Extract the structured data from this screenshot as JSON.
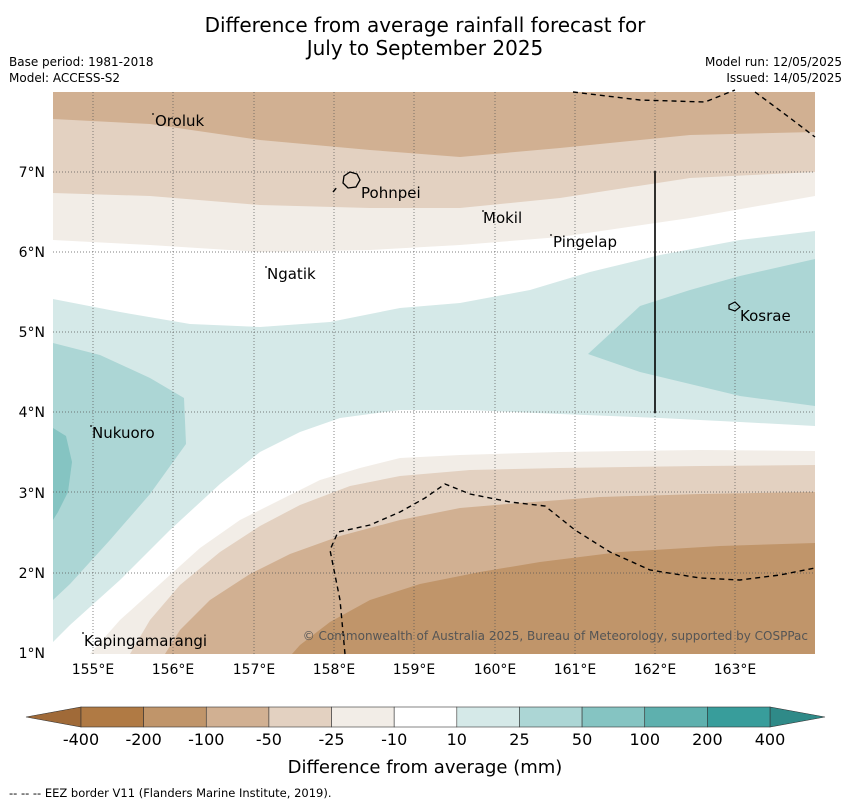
{
  "header": {
    "title_line1": "Difference from average rainfall forecast for",
    "title_line2": "July to September 2025",
    "base_period": "Base period: 1981-2018",
    "model": "Model: ACCESS-S2",
    "model_run": "Model run: 12/05/2025",
    "issued": "Issued: 14/05/2025"
  },
  "map": {
    "lat_ticks": [
      "7°N",
      "6°N",
      "5°N",
      "4°N",
      "3°N",
      "2°N",
      "1°N"
    ],
    "lon_ticks": [
      "155°E",
      "156°E",
      "157°E",
      "158°E",
      "159°E",
      "160°E",
      "161°E",
      "162°E",
      "163°E"
    ],
    "places": {
      "oroluk": "Oroluk",
      "pohnpei": "Pohnpei",
      "mokil": "Mokil",
      "pingelap": "Pingelap",
      "ngatik": "Ngatik",
      "kosrae": "Kosrae",
      "nukuoro": "Nukuoro",
      "kapingamarangi": "Kapingamarangi"
    },
    "copyright": "© Commonwealth of Australia 2025, Bureau of Meteorology, supported by COSPPac",
    "colors": {
      "dry_400": "#b07a44",
      "dry_200": "#c0956a",
      "dry_100": "#d1b092",
      "dry_50": "#e3d1c1",
      "dry_25": "#f2ede7",
      "neutral": "#ffffff",
      "wet_10": "#d5e9e8",
      "wet_25": "#acd6d5",
      "wet_50": "#85c4c2",
      "wet_100": "#5eb0ae",
      "wet_200": "#389d9b"
    }
  },
  "colorbar": {
    "labels": [
      "-400",
      "-200",
      "-100",
      "-50",
      "-25",
      "-10",
      "10",
      "25",
      "50",
      "100",
      "200",
      "400"
    ],
    "colors": [
      "#b07a44",
      "#c0956a",
      "#d1b092",
      "#e3d1c1",
      "#f2ede7",
      "#ffffff",
      "#d5e9e8",
      "#acd6d5",
      "#85c4c2",
      "#5eb0ae",
      "#389d9b"
    ],
    "extend_low_color": "#a06a38",
    "extend_high_color": "#2f8a88",
    "title": "Difference from average (mm)"
  },
  "footer": {
    "eez_note": "--  --  -- EEZ border V11 (Flanders Marine Institute, 2019)."
  }
}
